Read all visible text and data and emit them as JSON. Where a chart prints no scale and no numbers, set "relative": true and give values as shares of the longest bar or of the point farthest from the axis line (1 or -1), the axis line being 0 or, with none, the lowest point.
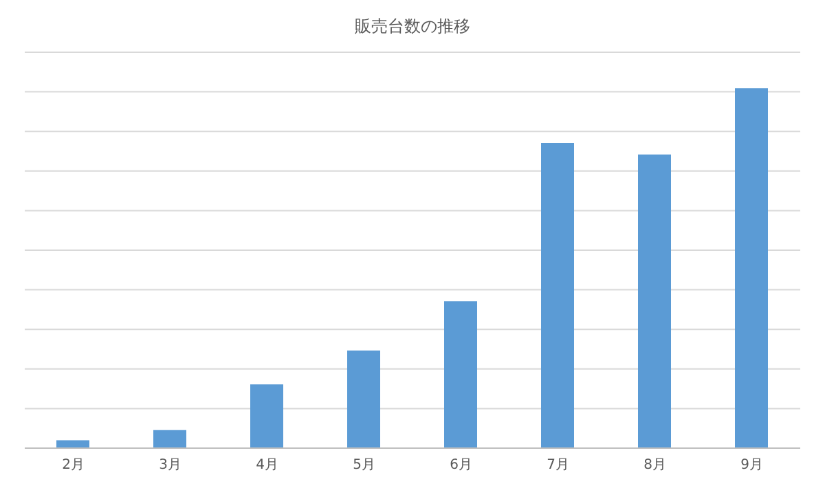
{
  "chart_data": {
    "type": "bar",
    "title": "販売台数の推移",
    "relative": true,
    "categories": [
      "2月",
      "3月",
      "4月",
      "5月",
      "6月",
      "7月",
      "8月",
      "9月"
    ],
    "values": [
      0.022,
      0.05,
      0.177,
      0.271,
      0.408,
      0.848,
      0.816,
      1
    ],
    "color": "#5b9bd5",
    "grid": "y"
  }
}
